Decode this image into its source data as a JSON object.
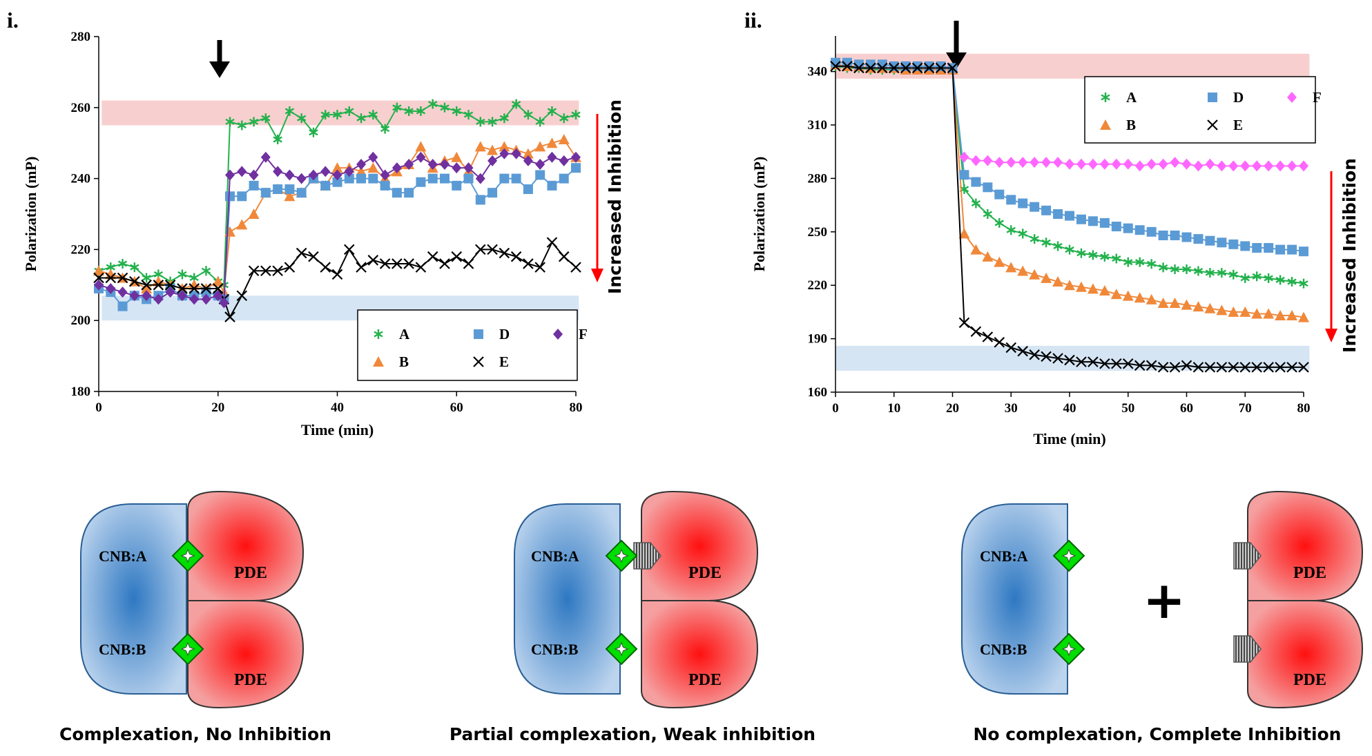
{
  "colors": {
    "A": "#22b14c",
    "B": "#f0883a",
    "D": "#5b9bd5",
    "E": "#000000",
    "F_i": "#7030a0",
    "F_ii": "#ff66ff",
    "red_band": "#f7c7c7",
    "blue_band": "#cfe0f2",
    "arrow_red": "#ff0000",
    "diamond": "#00dd00"
  },
  "chart_data": [
    {
      "panel_label": "i.",
      "type": "line",
      "xlabel": "Time (min)",
      "ylabel": "Polarization (mP)",
      "xlim": [
        0,
        80
      ],
      "ylim": [
        180,
        280
      ],
      "xticks": [
        0,
        20,
        40,
        60,
        80
      ],
      "yticks": [
        180,
        200,
        220,
        240,
        260,
        280
      ],
      "injection_time": 20,
      "annotation": "Increased Inhibition",
      "bands": [
        {
          "name": "no-inhibition-band",
          "color": "red_band",
          "y": [
            255,
            262
          ],
          "x": [
            0.5,
            80.5
          ]
        },
        {
          "name": "complete-inhibition-band",
          "color": "blue_band",
          "y": [
            200,
            207
          ],
          "x": [
            0.5,
            80.5
          ]
        }
      ],
      "series": [
        {
          "name": "A",
          "color": "A",
          "marker": "asterisk",
          "x": [
            0,
            2,
            4,
            6,
            8,
            10,
            12,
            14,
            16,
            18,
            20,
            21,
            22,
            24,
            26,
            28,
            30,
            32,
            34,
            36,
            38,
            40,
            42,
            44,
            46,
            48,
            50,
            52,
            54,
            56,
            58,
            60,
            62,
            64,
            66,
            68,
            70,
            72,
            74,
            76,
            78,
            80
          ],
          "values": [
            214,
            215,
            216,
            215,
            212,
            213,
            211,
            213,
            212,
            214,
            211,
            210,
            256,
            255,
            256,
            257,
            251,
            259,
            257,
            253,
            258,
            258,
            259,
            257,
            258,
            254,
            260,
            259,
            259,
            261,
            260,
            259,
            258,
            256,
            256,
            257,
            261,
            258,
            256,
            259,
            257,
            258
          ]
        },
        {
          "name": "B",
          "color": "B",
          "marker": "triangle",
          "x": [
            0,
            2,
            4,
            6,
            8,
            10,
            12,
            14,
            16,
            18,
            20,
            21,
            22,
            24,
            26,
            28,
            30,
            32,
            34,
            36,
            38,
            40,
            42,
            44,
            46,
            48,
            50,
            52,
            54,
            56,
            58,
            60,
            62,
            64,
            66,
            68,
            70,
            72,
            74,
            76,
            78,
            80
          ],
          "values": [
            214,
            213,
            212,
            211,
            209,
            211,
            210,
            209,
            210,
            209,
            211,
            208,
            225,
            227,
            230,
            236,
            237,
            235,
            236,
            240,
            238,
            243,
            243,
            242,
            243,
            240,
            242,
            244,
            249,
            243,
            245,
            246,
            242,
            249,
            248,
            249,
            248,
            247,
            249,
            250,
            251,
            246
          ]
        },
        {
          "name": "D",
          "color": "D",
          "marker": "square",
          "x": [
            0,
            2,
            4,
            6,
            8,
            10,
            12,
            14,
            16,
            18,
            20,
            21,
            22,
            24,
            26,
            28,
            30,
            32,
            34,
            36,
            38,
            40,
            42,
            44,
            46,
            48,
            50,
            52,
            54,
            56,
            58,
            60,
            62,
            64,
            66,
            68,
            70,
            72,
            74,
            76,
            78,
            80
          ],
          "values": [
            209,
            208,
            204,
            207,
            206,
            207,
            209,
            207,
            207,
            208,
            207,
            206,
            235,
            235,
            238,
            236,
            237,
            237,
            236,
            240,
            238,
            239,
            240,
            240,
            240,
            238,
            236,
            236,
            239,
            240,
            240,
            238,
            240,
            234,
            236,
            240,
            240,
            237,
            241,
            238,
            240,
            243
          ]
        },
        {
          "name": "E",
          "color": "E",
          "marker": "x",
          "x": [
            0,
            2,
            4,
            6,
            8,
            10,
            12,
            14,
            16,
            18,
            20,
            21,
            22,
            24,
            26,
            28,
            30,
            32,
            34,
            36,
            38,
            40,
            42,
            44,
            46,
            48,
            50,
            52,
            54,
            56,
            58,
            60,
            62,
            64,
            66,
            68,
            70,
            72,
            74,
            76,
            78,
            80
          ],
          "values": [
            212,
            212,
            212,
            211,
            210,
            210,
            210,
            209,
            209,
            209,
            209,
            206,
            201,
            207,
            214,
            214,
            214,
            215,
            219,
            218,
            215,
            213,
            220,
            215,
            217,
            216,
            216,
            216,
            215,
            218,
            216,
            218,
            216,
            220,
            220,
            219,
            218,
            216,
            215,
            222,
            218,
            215
          ]
        },
        {
          "name": "F",
          "color": "F_i",
          "marker": "diamond",
          "x": [
            0,
            2,
            4,
            6,
            8,
            10,
            12,
            14,
            16,
            18,
            20,
            21,
            22,
            24,
            26,
            28,
            30,
            32,
            34,
            36,
            38,
            40,
            42,
            44,
            46,
            48,
            50,
            52,
            54,
            56,
            58,
            60,
            62,
            64,
            66,
            68,
            70,
            72,
            74,
            76,
            78,
            80
          ],
          "values": [
            210,
            209,
            208,
            207,
            207,
            206,
            208,
            207,
            206,
            206,
            207,
            205,
            241,
            242,
            241,
            246,
            242,
            241,
            240,
            241,
            242,
            241,
            242,
            244,
            246,
            241,
            243,
            244,
            246,
            244,
            244,
            243,
            243,
            240,
            245,
            247,
            247,
            245,
            244,
            246,
            245,
            246
          ]
        }
      ],
      "legend": [
        "A",
        "D",
        "F",
        "B",
        "E"
      ]
    },
    {
      "panel_label": "ii.",
      "type": "line",
      "xlabel": "Time (min)",
      "ylabel": "Polarization (mP)",
      "xlim": [
        0,
        80
      ],
      "ylim": [
        160,
        360
      ],
      "xticks": [
        0,
        10,
        20,
        30,
        40,
        50,
        60,
        70,
        80
      ],
      "yticks": [
        160,
        190,
        220,
        250,
        280,
        310,
        340
      ],
      "injection_time": 20,
      "annotation": "Increased Inhibition",
      "bands": [
        {
          "name": "no-inhibition-band",
          "color": "red_band",
          "y": [
            336,
            350
          ],
          "x": [
            0,
            81
          ]
        },
        {
          "name": "complete-inhibition-band",
          "color": "blue_band",
          "y": [
            172,
            186
          ],
          "x": [
            0,
            81
          ]
        }
      ],
      "series": [
        {
          "name": "A",
          "color": "A",
          "marker": "asterisk",
          "x": [
            0,
            2,
            4,
            6,
            8,
            10,
            12,
            14,
            16,
            18,
            20,
            22,
            24,
            26,
            28,
            30,
            32,
            34,
            36,
            38,
            40,
            42,
            44,
            46,
            48,
            50,
            52,
            54,
            56,
            58,
            60,
            62,
            64,
            66,
            68,
            70,
            72,
            74,
            76,
            78,
            80
          ],
          "values": [
            343,
            342,
            342,
            341,
            341,
            341,
            341,
            341,
            341,
            341,
            341,
            274,
            266,
            260,
            255,
            251,
            249,
            246,
            244,
            242,
            240,
            238,
            237,
            236,
            235,
            233,
            233,
            232,
            230,
            229,
            229,
            228,
            227,
            227,
            226,
            224,
            225,
            224,
            223,
            222,
            221
          ]
        },
        {
          "name": "B",
          "color": "B",
          "marker": "triangle",
          "x": [
            0,
            2,
            4,
            6,
            8,
            10,
            12,
            14,
            16,
            18,
            20,
            22,
            24,
            26,
            28,
            30,
            32,
            34,
            36,
            38,
            40,
            42,
            44,
            46,
            48,
            50,
            52,
            54,
            56,
            58,
            60,
            62,
            64,
            66,
            68,
            70,
            72,
            74,
            76,
            78,
            80
          ],
          "values": [
            344,
            343,
            343,
            342,
            342,
            342,
            341,
            341,
            341,
            341,
            341,
            249,
            240,
            236,
            233,
            230,
            228,
            226,
            224,
            222,
            220,
            219,
            218,
            217,
            215,
            214,
            213,
            212,
            210,
            210,
            209,
            208,
            207,
            206,
            205,
            205,
            204,
            204,
            203,
            203,
            202
          ]
        },
        {
          "name": "D",
          "color": "D",
          "marker": "square",
          "x": [
            0,
            2,
            4,
            6,
            8,
            10,
            12,
            14,
            16,
            18,
            20,
            22,
            24,
            26,
            28,
            30,
            32,
            34,
            36,
            38,
            40,
            42,
            44,
            46,
            48,
            50,
            52,
            54,
            56,
            58,
            60,
            62,
            64,
            66,
            68,
            70,
            72,
            74,
            76,
            78,
            80
          ],
          "values": [
            345,
            345,
            344,
            344,
            344,
            343,
            343,
            343,
            343,
            343,
            342,
            282,
            278,
            275,
            271,
            268,
            266,
            264,
            262,
            260,
            259,
            257,
            256,
            255,
            253,
            252,
            251,
            250,
            248,
            248,
            247,
            246,
            245,
            244,
            243,
            242,
            241,
            241,
            240,
            240,
            239
          ]
        },
        {
          "name": "E",
          "color": "E",
          "marker": "x",
          "x": [
            0,
            2,
            4,
            6,
            8,
            10,
            12,
            14,
            16,
            18,
            20,
            22,
            24,
            26,
            28,
            30,
            32,
            34,
            36,
            38,
            40,
            42,
            44,
            46,
            48,
            50,
            52,
            54,
            56,
            58,
            60,
            62,
            64,
            66,
            68,
            70,
            72,
            74,
            76,
            78,
            80
          ],
          "values": [
            343,
            343,
            342,
            342,
            342,
            342,
            342,
            342,
            342,
            342,
            342,
            199,
            194,
            191,
            188,
            185,
            183,
            181,
            180,
            179,
            178,
            177,
            177,
            176,
            176,
            176,
            175,
            175,
            174,
            174,
            175,
            174,
            174,
            174,
            174,
            174,
            174,
            174,
            174,
            174,
            174
          ]
        },
        {
          "name": "F",
          "color": "F_ii",
          "marker": "diamond",
          "x": [
            22,
            24,
            26,
            28,
            30,
            32,
            34,
            36,
            38,
            40,
            42,
            44,
            46,
            48,
            50,
            52,
            54,
            56,
            58,
            60,
            62,
            64,
            66,
            68,
            70,
            72,
            74,
            76,
            78,
            80
          ],
          "values": [
            292,
            290,
            290,
            289,
            289,
            289,
            289,
            289,
            289,
            288,
            288,
            288,
            288,
            288,
            288,
            287,
            288,
            288,
            289,
            288,
            287,
            288,
            287,
            287,
            287,
            287,
            287,
            287,
            287,
            287
          ]
        }
      ],
      "legend": [
        "A",
        "D",
        "F",
        "B",
        "E"
      ]
    }
  ],
  "diagrams": [
    {
      "caption": "Complexation, No Inhibition",
      "cnb_labels": [
        "CNB:A",
        "CNB:B"
      ],
      "pde_labels": [
        "PDE",
        "PDE"
      ]
    },
    {
      "caption": "Partial complexation, Weak inhibition",
      "cnb_labels": [
        "CNB:A",
        "CNB:B"
      ],
      "pde_labels": [
        "PDE",
        "PDE"
      ]
    },
    {
      "caption": "No complexation, Complete Inhibition",
      "cnb_labels": [
        "CNB:A",
        "CNB:B"
      ],
      "pde_labels": [
        "PDE",
        "PDE"
      ],
      "plus": "+"
    }
  ]
}
